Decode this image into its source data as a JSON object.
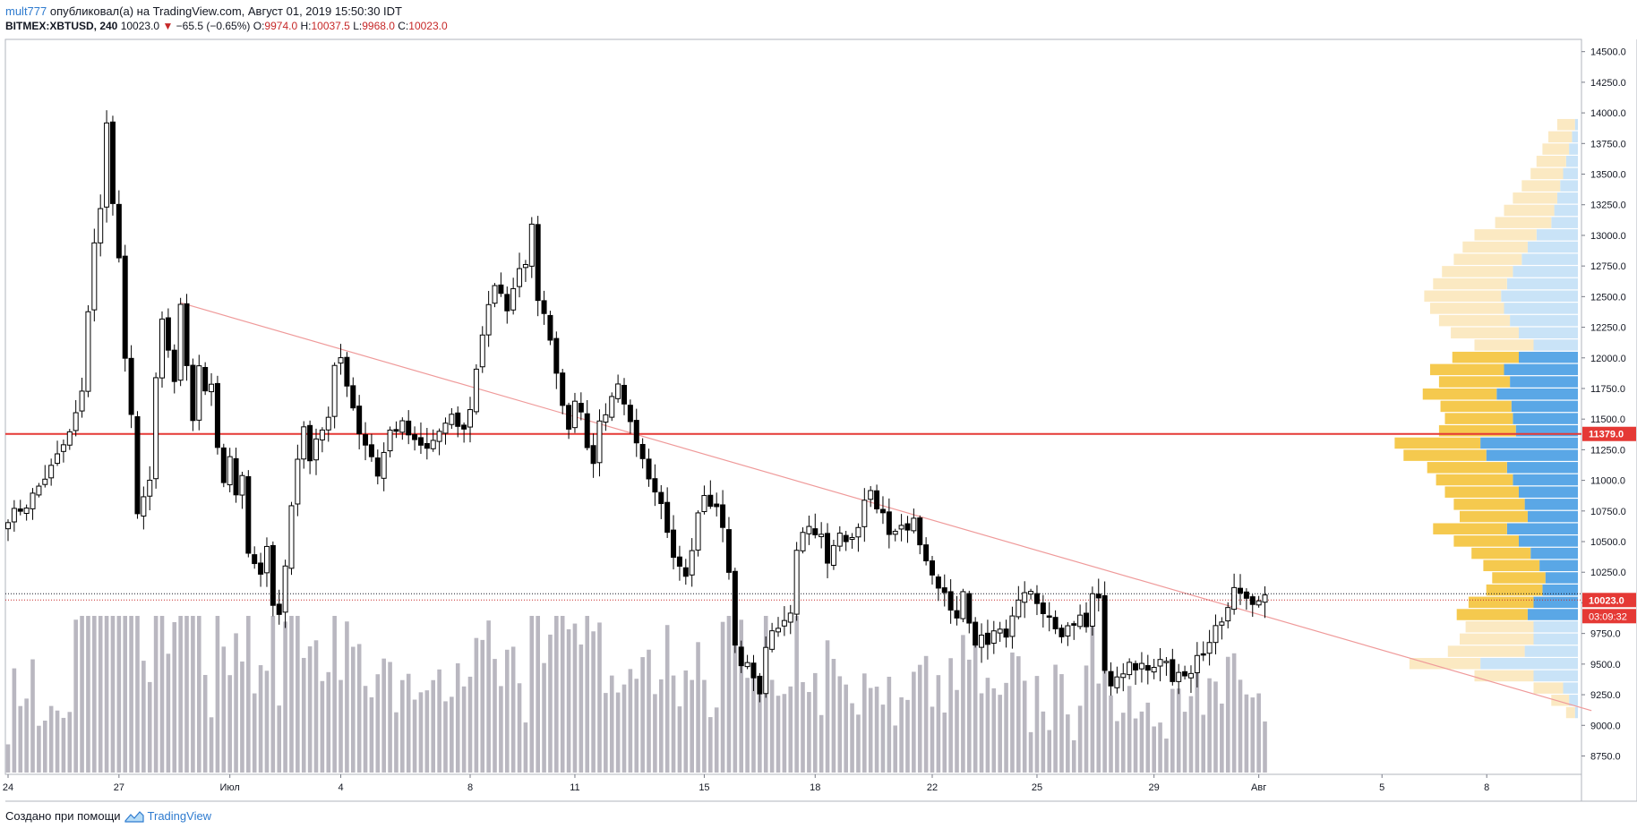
{
  "header": {
    "user": "mult777",
    "published_text": "опубликовал(а) на TradingView.com, Август 01, 2019 15:50:30 IDT",
    "symbol": "BITMEX:XBTUSD, 240",
    "last": "10023.0",
    "change": "−65.5 (−0.65%)",
    "o_label": "O:",
    "o_value": "9974.0",
    "h_label": "H:",
    "h_value": "10037.5",
    "l_label": "L:",
    "l_value": "9968.0",
    "c_label": "C:",
    "c_value": "10023.0"
  },
  "footer": {
    "created_with": "Создано при помощи",
    "brand": "TradingView"
  },
  "colors": {
    "up_candle_fill": "#ffffff",
    "down_candle_fill": "#000000",
    "volume": "#b9b7c0",
    "resistance_line": "#e53935",
    "trend_line": "#ef9a9a",
    "profile_blue": "#5aa7e6",
    "profile_light_blue": "#c9e3f7",
    "profile_yellow": "#f5c94e",
    "profile_light_yellow": "#fbe9c2",
    "price_badge": "#e53935"
  },
  "chart_data": {
    "type": "candlestick",
    "y_axis": {
      "ylim": [
        8600,
        14600
      ],
      "ticks": [
        "14500.0",
        "14250.0",
        "14000.0",
        "13750.0",
        "13500.0",
        "13250.0",
        "13000.0",
        "12750.0",
        "12500.0",
        "12250.0",
        "12000.0",
        "11750.0",
        "11500.0",
        "11250.0",
        "11000.0",
        "10750.0",
        "10500.0",
        "10250.0",
        "10000.0",
        "9750.0",
        "9500.0",
        "9250.0",
        "9000.0",
        "8750.0"
      ],
      "tick_values": [
        14500,
        14250,
        14000,
        13750,
        13500,
        13250,
        13000,
        12750,
        12500,
        12250,
        12000,
        11750,
        11500,
        11250,
        11000,
        10750,
        10500,
        10250,
        10000,
        9750,
        9500,
        9250,
        9000,
        8750
      ]
    },
    "x_axis": {
      "labels": [
        "24",
        "27",
        "Июл",
        "4",
        "8",
        "11",
        "15",
        "18",
        "22",
        "25",
        "29",
        "Авг",
        "5",
        "8"
      ],
      "label_bars": [
        0,
        18,
        36,
        54,
        75,
        92,
        113,
        131,
        150,
        167,
        186,
        203,
        223,
        240
      ]
    },
    "resistance": {
      "value": 11379.0,
      "label": "11379.0"
    },
    "last_price": {
      "value": 10023.0,
      "label": "10023.0",
      "countdown": "03:09:32"
    },
    "trendline": {
      "from": [
        28,
        12450
      ],
      "to": [
        257,
        9120
      ]
    },
    "close_keypoints": [
      [
        0,
        10700
      ],
      [
        3,
        10800
      ],
      [
        7,
        11100
      ],
      [
        10,
        11380
      ],
      [
        12,
        11700
      ],
      [
        13,
        12400
      ],
      [
        14,
        12950
      ],
      [
        15,
        13200
      ],
      [
        16,
        13900
      ],
      [
        17,
        13300
      ],
      [
        18,
        12800
      ],
      [
        19,
        12000
      ],
      [
        20,
        11500
      ],
      [
        21,
        10700
      ],
      [
        22,
        10900
      ],
      [
        23,
        11000
      ],
      [
        24,
        11800
      ],
      [
        25,
        12300
      ],
      [
        26,
        12050
      ],
      [
        27,
        11800
      ],
      [
        28,
        12400
      ],
      [
        29,
        11900
      ],
      [
        30,
        11500
      ],
      [
        31,
        11950
      ],
      [
        32,
        11700
      ],
      [
        33,
        11800
      ],
      [
        34,
        11300
      ],
      [
        35,
        11000
      ],
      [
        36,
        11200
      ],
      [
        37,
        10900
      ],
      [
        38,
        11000
      ],
      [
        39,
        10400
      ],
      [
        40,
        10300
      ],
      [
        41,
        10200
      ],
      [
        42,
        10500
      ],
      [
        43,
        10000
      ],
      [
        44,
        9900
      ],
      [
        45,
        10300
      ],
      [
        46,
        10800
      ],
      [
        47,
        11200
      ],
      [
        48,
        11400
      ],
      [
        49,
        11200
      ],
      [
        50,
        11350
      ],
      [
        52,
        11500
      ],
      [
        53,
        11900
      ],
      [
        54,
        12000
      ],
      [
        55,
        11800
      ],
      [
        56,
        11600
      ],
      [
        57,
        11400
      ],
      [
        58,
        11300
      ],
      [
        59,
        11200
      ],
      [
        60,
        11050
      ],
      [
        62,
        11400
      ],
      [
        64,
        11450
      ],
      [
        66,
        11300
      ],
      [
        68,
        11250
      ],
      [
        70,
        11400
      ],
      [
        72,
        11500
      ],
      [
        74,
        11400
      ],
      [
        75,
        11600
      ],
      [
        76,
        11900
      ],
      [
        77,
        12200
      ],
      [
        78,
        12450
      ],
      [
        79,
        12600
      ],
      [
        80,
        12500
      ],
      [
        81,
        12350
      ],
      [
        82,
        12600
      ],
      [
        84,
        12800
      ],
      [
        85,
        13100
      ],
      [
        86,
        12500
      ],
      [
        87,
        12400
      ],
      [
        88,
        12100
      ],
      [
        89,
        11900
      ],
      [
        90,
        11600
      ],
      [
        91,
        11450
      ],
      [
        92,
        11650
      ],
      [
        93,
        11550
      ],
      [
        94,
        11300
      ],
      [
        95,
        11100
      ],
      [
        96,
        11450
      ],
      [
        97,
        11500
      ],
      [
        98,
        11650
      ],
      [
        99,
        11750
      ],
      [
        100,
        11600
      ],
      [
        101,
        11500
      ],
      [
        102,
        11350
      ],
      [
        103,
        11200
      ],
      [
        104,
        11050
      ],
      [
        105,
        10950
      ],
      [
        106,
        10800
      ],
      [
        107,
        10600
      ],
      [
        108,
        10350
      ],
      [
        109,
        10300
      ],
      [
        110,
        10200
      ],
      [
        111,
        10450
      ],
      [
        112,
        10700
      ],
      [
        113,
        10900
      ],
      [
        114,
        10800
      ],
      [
        115,
        10750
      ],
      [
        116,
        10650
      ],
      [
        117,
        10250
      ],
      [
        118,
        9700
      ],
      [
        119,
        9450
      ],
      [
        120,
        9500
      ],
      [
        121,
        9350
      ],
      [
        122,
        9300
      ],
      [
        123,
        9600
      ],
      [
        124,
        9800
      ],
      [
        125,
        9750
      ],
      [
        126,
        9850
      ],
      [
        127,
        9900
      ],
      [
        128,
        10450
      ],
      [
        129,
        10600
      ],
      [
        130,
        10650
      ],
      [
        131,
        10550
      ],
      [
        132,
        10600
      ],
      [
        133,
        10300
      ],
      [
        134,
        10450
      ],
      [
        135,
        10550
      ],
      [
        136,
        10500
      ],
      [
        138,
        10650
      ],
      [
        139,
        10800
      ],
      [
        140,
        10950
      ],
      [
        141,
        10750
      ],
      [
        142,
        10700
      ],
      [
        143,
        10600
      ],
      [
        144,
        10550
      ],
      [
        145,
        10600
      ],
      [
        146,
        10550
      ],
      [
        147,
        10650
      ],
      [
        148,
        10450
      ],
      [
        149,
        10350
      ],
      [
        150,
        10250
      ],
      [
        151,
        10100
      ],
      [
        152,
        10050
      ],
      [
        153,
        9950
      ],
      [
        154,
        9900
      ],
      [
        155,
        10100
      ],
      [
        156,
        9800
      ],
      [
        157,
        9650
      ],
      [
        158,
        9750
      ],
      [
        159,
        9650
      ],
      [
        160,
        9750
      ],
      [
        161,
        9800
      ],
      [
        162,
        9700
      ],
      [
        163,
        9900
      ],
      [
        164,
        10050
      ],
      [
        165,
        10100
      ],
      [
        166,
        10050
      ],
      [
        167,
        9950
      ],
      [
        168,
        9900
      ],
      [
        169,
        9850
      ],
      [
        170,
        9750
      ],
      [
        171,
        9750
      ],
      [
        172,
        9800
      ],
      [
        173,
        9850
      ],
      [
        174,
        9900
      ],
      [
        175,
        9800
      ],
      [
        176,
        10050
      ],
      [
        177,
        10000
      ],
      [
        178,
        9450
      ],
      [
        179,
        9350
      ],
      [
        180,
        9400
      ],
      [
        181,
        9450
      ],
      [
        182,
        9500
      ],
      [
        183,
        9450
      ],
      [
        184,
        9500
      ],
      [
        185,
        9450
      ],
      [
        186,
        9450
      ],
      [
        187,
        9550
      ],
      [
        188,
        9500
      ],
      [
        189,
        9400
      ],
      [
        190,
        9450
      ],
      [
        191,
        9400
      ],
      [
        192,
        9450
      ],
      [
        193,
        9550
      ],
      [
        194,
        9600
      ],
      [
        195,
        9700
      ],
      [
        196,
        9800
      ],
      [
        197,
        9850
      ],
      [
        198,
        10000
      ],
      [
        199,
        10100
      ],
      [
        200,
        10050
      ],
      [
        201,
        10000
      ],
      [
        202,
        9950
      ],
      [
        203,
        10000
      ],
      [
        204,
        10023
      ]
    ],
    "n_bars": 205,
    "volume_profile": {
      "rows": [
        [
          13900,
          0,
          0.12,
          0,
          0.02
        ],
        [
          13800,
          0,
          0.16,
          0,
          0.04
        ],
        [
          13700,
          0,
          0.18,
          0,
          0.06
        ],
        [
          13600,
          0,
          0.2,
          0,
          0.08
        ],
        [
          13500,
          0,
          0.22,
          0,
          0.1
        ],
        [
          13400,
          0,
          0.26,
          0,
          0.12
        ],
        [
          13300,
          0,
          0.3,
          0,
          0.14
        ],
        [
          13200,
          0,
          0.34,
          0,
          0.16
        ],
        [
          13100,
          0,
          0.38,
          0,
          0.18
        ],
        [
          13000,
          0,
          0.42,
          0,
          0.28
        ],
        [
          12900,
          0,
          0.44,
          0,
          0.34
        ],
        [
          12800,
          0,
          0.46,
          0,
          0.38
        ],
        [
          12700,
          0,
          0.48,
          0,
          0.44
        ],
        [
          12600,
          0,
          0.5,
          0,
          0.48
        ],
        [
          12500,
          0,
          0.52,
          0,
          0.52
        ],
        [
          12400,
          0,
          0.5,
          0,
          0.5
        ],
        [
          12300,
          0,
          0.48,
          0,
          0.46
        ],
        [
          12200,
          0,
          0.46,
          0,
          0.4
        ],
        [
          12100,
          0,
          0.4,
          0,
          0.3
        ],
        [
          12000,
          0.45,
          0,
          0.4,
          0
        ],
        [
          11900,
          0.5,
          0,
          0.5,
          0
        ],
        [
          11800,
          0.48,
          0,
          0.46,
          0
        ],
        [
          11700,
          0.5,
          0,
          0.55,
          0
        ],
        [
          11600,
          0.48,
          0,
          0.45,
          0
        ],
        [
          11500,
          0.46,
          0,
          0.44,
          0
        ],
        [
          11400,
          0.52,
          0,
          0.42,
          0
        ],
        [
          11300,
          0.58,
          0,
          0.66,
          0
        ],
        [
          11200,
          0.56,
          0,
          0.62,
          0
        ],
        [
          11100,
          0.54,
          0,
          0.48,
          0
        ],
        [
          11000,
          0.52,
          0,
          0.44,
          0
        ],
        [
          10900,
          0.5,
          0,
          0.4,
          0
        ],
        [
          10800,
          0.48,
          0,
          0.36,
          0
        ],
        [
          10700,
          0.46,
          0,
          0.34,
          0
        ],
        [
          10600,
          0.5,
          0,
          0.48,
          0
        ],
        [
          10500,
          0.44,
          0,
          0.4,
          0
        ],
        [
          10400,
          0.4,
          0,
          0.32,
          0
        ],
        [
          10300,
          0.38,
          0,
          0.26,
          0
        ],
        [
          10200,
          0.36,
          0,
          0.22,
          0
        ],
        [
          10100,
          0.38,
          0,
          0.24,
          0
        ],
        [
          10000,
          0.44,
          0,
          0.3,
          0
        ],
        [
          9900,
          0.48,
          0,
          0.34,
          0
        ],
        [
          9800,
          0,
          0.46,
          0,
          0.3
        ],
        [
          9700,
          0,
          0.5,
          0,
          0.3
        ],
        [
          9600,
          0,
          0.52,
          0,
          0.36
        ],
        [
          9500,
          0,
          0.48,
          0,
          0.66
        ],
        [
          9400,
          0,
          0.4,
          0,
          0.3
        ],
        [
          9300,
          0,
          0.2,
          0,
          0.1
        ],
        [
          9200,
          0,
          0.12,
          0,
          0.06
        ],
        [
          9100,
          0,
          0.06,
          0,
          0.02
        ]
      ]
    }
  }
}
